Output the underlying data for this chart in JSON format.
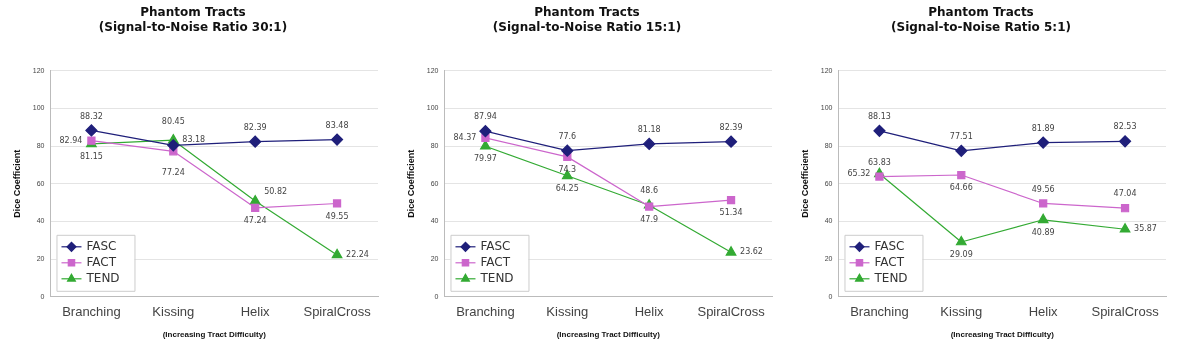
{
  "chart_data": [
    {
      "type": "line",
      "title": "Phantom Tracts\n(Signal-to-Noise Ratio 30:1)",
      "xlabel": "(Increasing Tract Difficulty)",
      "ylabel": "Dice Coefficient",
      "categories": [
        "Branching",
        "Kissing",
        "Helix",
        "SpiralCross"
      ],
      "ylim": [
        0,
        120
      ],
      "yticks": [
        0,
        20,
        40,
        60,
        80,
        100,
        120
      ],
      "grid": "y",
      "legend": "bottom left",
      "data_labels": true,
      "series": [
        {
          "name": "FASC",
          "color": "#1f1f7a",
          "marker": "diamond",
          "values": [
            88.32,
            80.45,
            82.39,
            83.48
          ]
        },
        {
          "name": "FACT",
          "color": "#cc66cc",
          "marker": "square",
          "values": [
            82.94,
            77.24,
            47.24,
            49.55
          ]
        },
        {
          "name": "TEND",
          "color": "#33aa33",
          "marker": "triangle",
          "values": [
            81.15,
            83.18,
            50.82,
            22.24
          ]
        }
      ]
    },
    {
      "type": "line",
      "title": "Phantom Tracts\n(Signal-to-Noise Ratio 15:1)",
      "xlabel": "(Increasing Tract Difficulty)",
      "ylabel": "Dice Coefficient",
      "categories": [
        "Branching",
        "Kissing",
        "Helix",
        "SpiralCross"
      ],
      "ylim": [
        0,
        120
      ],
      "yticks": [
        0,
        20,
        40,
        60,
        80,
        100,
        120
      ],
      "grid": "y",
      "legend": "bottom left",
      "data_labels": true,
      "series": [
        {
          "name": "FASC",
          "color": "#1f1f7a",
          "marker": "diamond",
          "values": [
            87.94,
            77.6,
            81.18,
            82.39
          ]
        },
        {
          "name": "FACT",
          "color": "#cc66cc",
          "marker": "square",
          "values": [
            84.37,
            74.3,
            47.9,
            51.34
          ]
        },
        {
          "name": "TEND",
          "color": "#33aa33",
          "marker": "triangle",
          "values": [
            79.97,
            64.25,
            48.6,
            23.62
          ]
        }
      ]
    },
    {
      "type": "line",
      "title": "Phantom Tracts\n(Signal-to-Noise Ratio 5:1)",
      "xlabel": "(Increasing Tract Difficulty)",
      "ylabel": "Dice Coefficient",
      "categories": [
        "Branching",
        "Kissing",
        "Helix",
        "SpiralCross"
      ],
      "ylim": [
        0,
        120
      ],
      "yticks": [
        0,
        20,
        40,
        60,
        80,
        100,
        120
      ],
      "grid": "y",
      "legend": "bottom left",
      "data_labels": true,
      "series": [
        {
          "name": "FASC",
          "color": "#1f1f7a",
          "marker": "diamond",
          "values": [
            88.13,
            77.51,
            81.89,
            82.53
          ]
        },
        {
          "name": "FACT",
          "color": "#cc66cc",
          "marker": "square",
          "values": [
            63.83,
            64.66,
            49.56,
            47.04
          ]
        },
        {
          "name": "TEND",
          "color": "#33aa33",
          "marker": "triangle",
          "values": [
            65.32,
            29.09,
            40.89,
            35.87
          ]
        }
      ]
    }
  ]
}
